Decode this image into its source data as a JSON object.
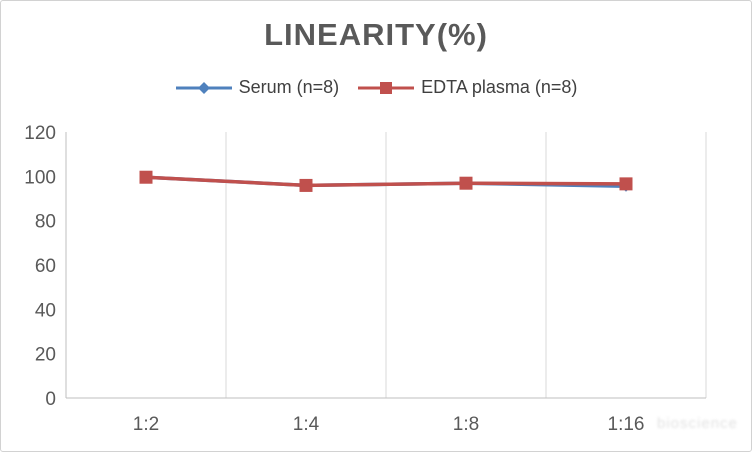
{
  "chart": {
    "title": "LINEARITY(%)",
    "watermark": "bioscience"
  },
  "chart_data": {
    "type": "line",
    "title": "LINEARITY(%)",
    "categories": [
      "1:2",
      "1:4",
      "1:8",
      "1:16"
    ],
    "series": [
      {
        "name": "Serum (n=8)",
        "color": "#4F81BD",
        "marker": "diamond",
        "values": [
          99.6,
          95.9,
          96.9,
          95.5
        ]
      },
      {
        "name": "EDTA plasma (n=8)",
        "color": "#C0504D",
        "marker": "square",
        "values": [
          99.6,
          95.9,
          96.9,
          96.6
        ]
      }
    ],
    "xlabel": "",
    "ylabel": "",
    "ylim": [
      0,
      120
    ],
    "yticks": [
      0,
      20,
      40,
      60,
      80,
      100,
      120
    ],
    "grid": "vertical-only",
    "legend_position": "top"
  },
  "colors": {
    "axis": "#BFBFBF",
    "gridline": "#D9D9D9",
    "tick_label": "#595959",
    "title_text": "#595959",
    "legend_text": "#404040"
  }
}
